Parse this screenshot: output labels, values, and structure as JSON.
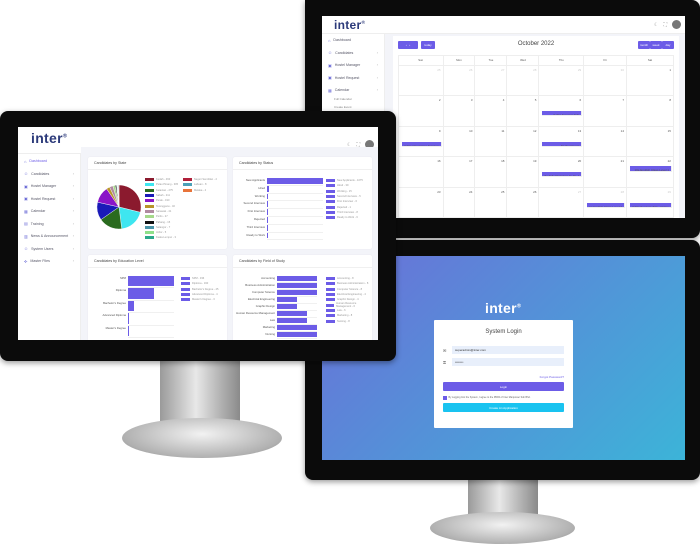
{
  "brand": {
    "logo": "inter",
    "accent": "#6c5ce7"
  },
  "calendar_screen": {
    "sidebar": [
      {
        "label": "Dashboard",
        "icon": "home-icon"
      },
      {
        "label": "Candidates",
        "icon": "users-icon",
        "chevron": true
      },
      {
        "label": "Hostel Manager",
        "icon": "building-icon",
        "chevron": true
      },
      {
        "label": "Hostel Request",
        "icon": "building-icon",
        "chevron": true
      },
      {
        "label": "Calendar",
        "icon": "calendar-icon",
        "chevron": true
      }
    ],
    "sub_items": [
      "Full Calendar",
      "Create Event",
      "Create Training"
    ],
    "title": "October 2022",
    "today": "today",
    "views": [
      "month",
      "week",
      "day"
    ],
    "weekdays": [
      "Sun",
      "Mon",
      "Tue",
      "Wed",
      "Thu",
      "Fri",
      "Sat"
    ],
    "days": [
      "25",
      "26",
      "27",
      "28",
      "29",
      "30",
      "1",
      "2",
      "3",
      "4",
      "5",
      "6",
      "7",
      "8",
      "9",
      "10",
      "11",
      "12",
      "13",
      "14",
      "15",
      "16",
      "17",
      "18",
      "19",
      "20",
      "21",
      "22",
      "23",
      "24",
      "25",
      "26",
      "27",
      "28",
      "29"
    ],
    "events": [
      {
        "cell": 11,
        "label": "9:30a Seminar Talk"
      },
      {
        "cell": 14,
        "label": "3:30a Orientation Training"
      },
      {
        "cell": 18,
        "label": "8a Test Event"
      },
      {
        "cell": 25,
        "label": "8a Talk Workshop by Dr. J"
      },
      {
        "cell": 27,
        "label": "10a English Class Level 1"
      },
      {
        "cell": 33,
        "label": "1p English Class Level 2"
      },
      {
        "cell": 34,
        "label": "3:30a Seminar Talk - Online"
      }
    ]
  },
  "dashboard_screen": {
    "sidebar": [
      {
        "label": "Dashboard",
        "icon": "home-icon",
        "active": true
      },
      {
        "label": "Candidates",
        "icon": "users-icon",
        "chevron": true
      },
      {
        "label": "Hostel Manager",
        "icon": "building-icon",
        "chevron": true
      },
      {
        "label": "Hostel Request",
        "icon": "building-icon",
        "chevron": true
      },
      {
        "label": "Calendar",
        "icon": "calendar-icon",
        "chevron": true
      },
      {
        "label": "Training",
        "icon": "clipboard-icon",
        "chevron": true
      },
      {
        "label": "News & Announcement",
        "icon": "news-icon",
        "chevron": true
      },
      {
        "label": "System Users",
        "icon": "users-icon",
        "chevron": true
      },
      {
        "label": "Master Files",
        "icon": "gear-icon",
        "chevron": true
      }
    ],
    "state_card": {
      "title": "Candidates by State",
      "slices": [
        {
          "name": "Kedah",
          "value": 460,
          "color": "#8b1a2e"
        },
        {
          "name": "Pulau Pinang",
          "value": 305,
          "color": "#3ee6f0"
        },
        {
          "name": "Kelantan",
          "value": 275,
          "color": "#2a6b1f"
        },
        {
          "name": "Sabah",
          "value": 211,
          "color": "#1a1ab8"
        },
        {
          "name": "Perak",
          "value": 190,
          "color": "#8a14c8"
        },
        {
          "name": "Terengganu",
          "value": 40,
          "color": "#b8952a"
        },
        {
          "name": "Sarawak",
          "value": 41,
          "color": "#b08aa0"
        },
        {
          "name": "Perlis",
          "value": 27,
          "color": "#a6d98a"
        },
        {
          "name": "Pahang",
          "value": 15,
          "color": "#111111"
        },
        {
          "name": "Selangor",
          "value": 7,
          "color": "#4a94a8"
        },
        {
          "name": "Johor",
          "value": 5,
          "color": "#8ee08a"
        },
        {
          "name": "Kuala Lumpur",
          "value": 3,
          "color": "#2aa88a"
        },
        {
          "name": "Negeri Sembilan",
          "value": 2,
          "color": "#b0203a"
        },
        {
          "name": "Labuan",
          "value": 8,
          "color": "#4aa0b8"
        },
        {
          "name": "Melaka",
          "value": 4,
          "color": "#e8743a"
        }
      ]
    },
    "status_card": {
      "title": "Candidates by Status",
      "bars": [
        {
          "name": "New Applicants",
          "value": 1075
        },
        {
          "name": "Hired",
          "value": 39
        },
        {
          "name": "Working",
          "value": 15
        },
        {
          "name": "Second Interview",
          "value": 5
        },
        {
          "name": "First Interview",
          "value": 6
        },
        {
          "name": "Rejected",
          "value": 1
        },
        {
          "name": "Third Interview",
          "value": 8
        },
        {
          "name": "Ready to Work",
          "value": 6
        }
      ]
    },
    "education_card": {
      "title": "Candidates by Education Level",
      "bars": [
        {
          "name": "SPM",
          "value": 336
        },
        {
          "name": "Diploma",
          "value": 190
        },
        {
          "name": "Bachelor's Degree",
          "value": 45
        },
        {
          "name": "Advanced Diploma",
          "value": 4
        },
        {
          "name": "Master's Degree",
          "value": 3
        }
      ]
    },
    "field_card": {
      "title": "Candidates by Field of Study",
      "bars": [
        {
          "name": "Accounting",
          "value": 8
        },
        {
          "name": "Business Administration",
          "value": 8
        },
        {
          "name": "Computer Science",
          "value": 8
        },
        {
          "name": "Electrical Engineering",
          "value": 4
        },
        {
          "name": "Graphic Design",
          "value": 4
        },
        {
          "name": "Human Resource Management",
          "value": 6
        },
        {
          "name": "Law",
          "value": 6
        },
        {
          "name": "Marketing",
          "value": 8
        },
        {
          "name": "Nursing",
          "value": 8
        }
      ]
    }
  },
  "login_screen": {
    "logo": "inter",
    "title": "System Login",
    "email": "superadmin@inter.com",
    "password": "••••••••",
    "forgot": "Forgot Password?",
    "login": "Login",
    "consent": "By Logging Into the System, I agree to the PDPA of Inter Manpower Sdn Bhd.",
    "create": "Create An Application",
    "gradient": [
      "#6b6fd8",
      "#3cb4d8"
    ]
  }
}
